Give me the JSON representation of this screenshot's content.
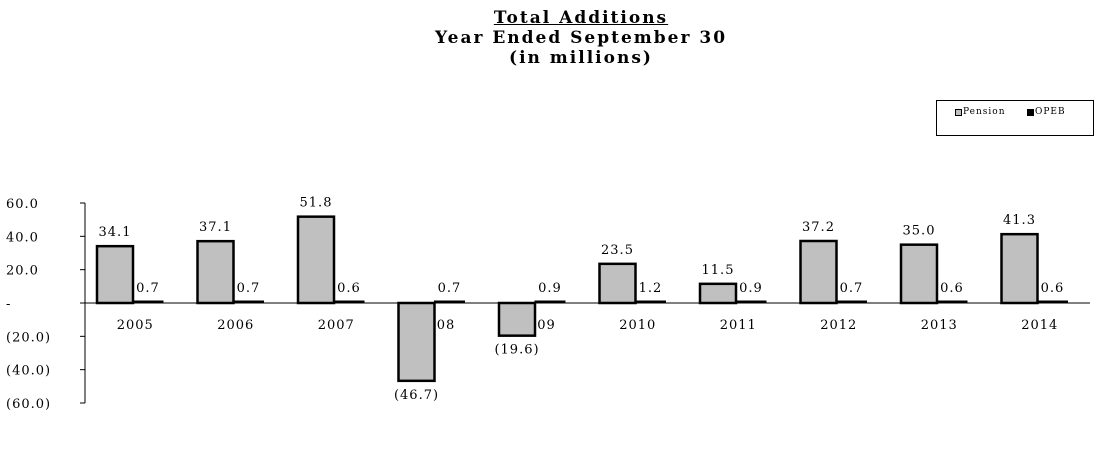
{
  "chart_data": {
    "type": "bar",
    "title": "Total Additions",
    "subtitle": "Year Ended September 30",
    "subtitle2": "(in millions)",
    "categories": [
      "2005",
      "2006",
      "2007",
      "2008",
      "2009",
      "2010",
      "2011",
      "2012",
      "2013",
      "2014"
    ],
    "series": [
      {
        "name": "Pension",
        "color": "#c0c0c0",
        "values": [
          34.1,
          37.1,
          51.8,
          -46.7,
          -19.6,
          23.5,
          11.5,
          37.2,
          35.0,
          41.3
        ],
        "labels": [
          "34.1",
          "37.1",
          "51.8",
          "(46.7)",
          "(19.6)",
          "23.5",
          "11.5",
          "37.2",
          "35.0",
          "41.3"
        ]
      },
      {
        "name": "OPEB",
        "color": "#000000",
        "values": [
          0.7,
          0.7,
          0.6,
          0.7,
          0.9,
          1.2,
          0.9,
          0.7,
          0.6,
          0.6
        ],
        "labels": [
          "0.7",
          "0.7",
          "0.6",
          "0.7",
          "0.9",
          "1.2",
          "0.9",
          "0.7",
          "0.6",
          "0.6"
        ]
      }
    ],
    "ylim": [
      -60,
      60
    ],
    "yticks": [
      60,
      40,
      20,
      0,
      -20,
      -40,
      -60
    ],
    "ytick_labels": [
      "60.0",
      "40.0",
      "20.0",
      "-",
      "(20.0)",
      "(40.0)",
      "(60.0)"
    ],
    "xlabel": "",
    "ylabel": "",
    "grid": false,
    "legend_position": "top-right"
  }
}
